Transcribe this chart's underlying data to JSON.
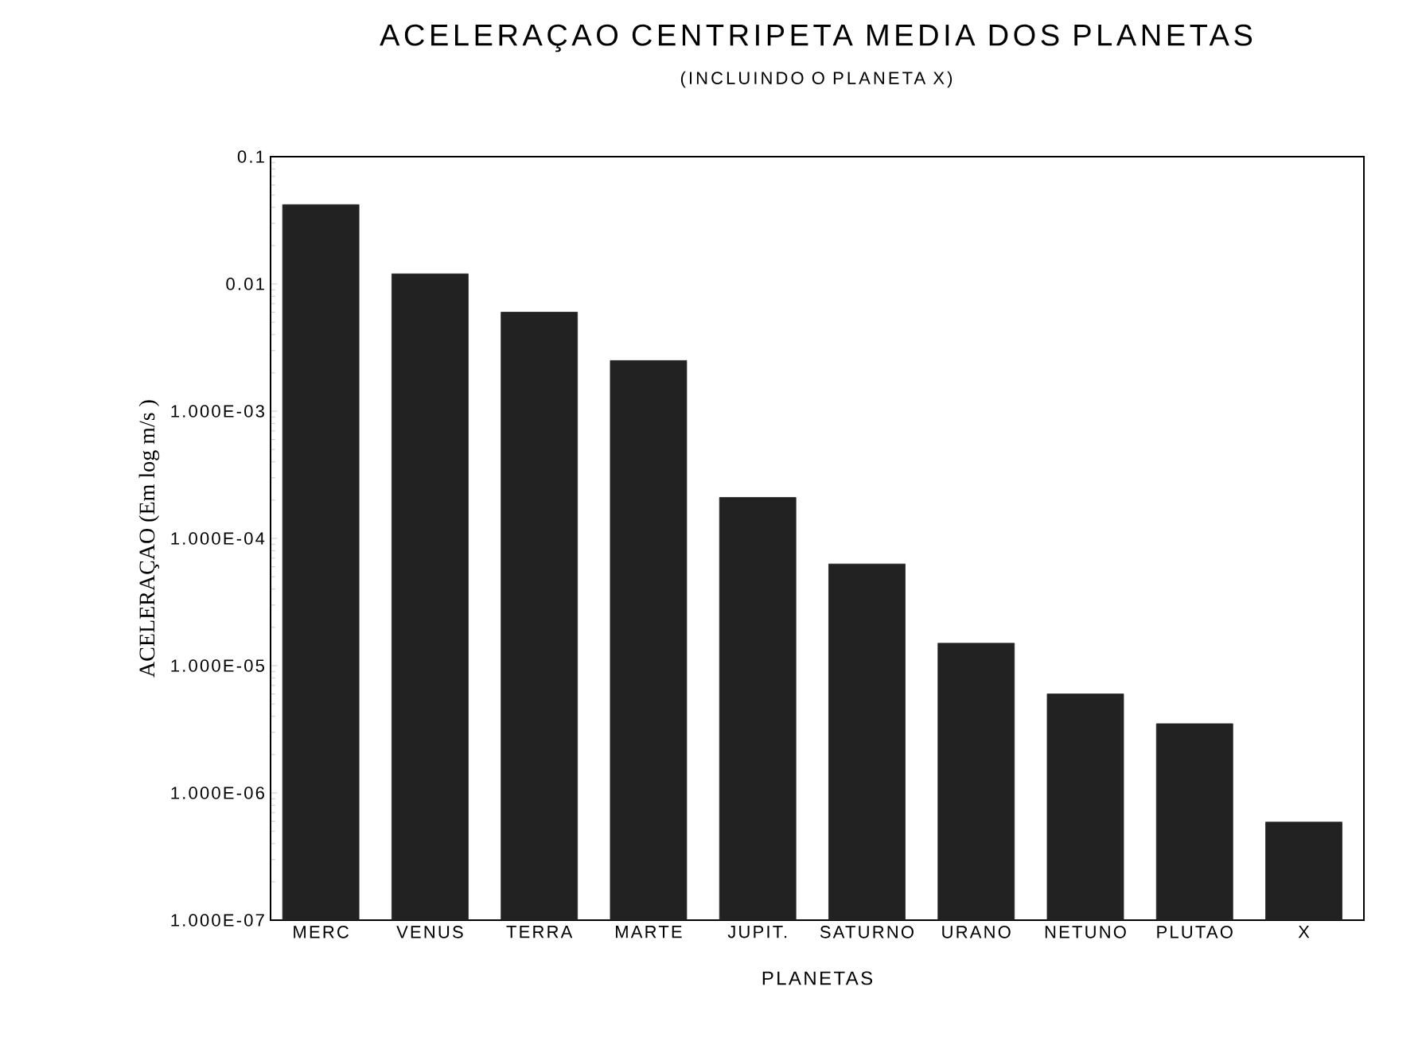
{
  "chart_data": {
    "type": "bar",
    "title": "ACELERAÇAO CENTRIPETA MEDIA DOS PLANETAS",
    "subtitle": "(INCLUINDO O PLANETA X)",
    "xlabel": "PLANETAS",
    "ylabel": "ACELERAÇAO (Em log m/s )",
    "categories": [
      "MERC",
      "VENUS",
      "TERRA",
      "MARTE",
      "JUPIT.",
      "SATURNO",
      "URANO",
      "NETUNO",
      "PLUTAO",
      "X"
    ],
    "values": [
      0.042,
      0.012,
      0.006,
      0.0025,
      0.00021,
      6.3e-05,
      1.5e-05,
      6e-06,
      3.5e-06,
      5.9e-07
    ],
    "color": "#222222",
    "log": "y",
    "ylim": [
      1e-07,
      0.1
    ],
    "yticks": [
      {
        "value": 1e-07,
        "label": "1.000E-07"
      },
      {
        "value": 1e-06,
        "label": "1.000E-06"
      },
      {
        "value": 1e-05,
        "label": "1.000E-05"
      },
      {
        "value": 0.0001,
        "label": "1.000E-04"
      },
      {
        "value": 0.001,
        "label": "1.000E-03"
      },
      0.01,
      0.1
    ],
    "grid": false
  }
}
